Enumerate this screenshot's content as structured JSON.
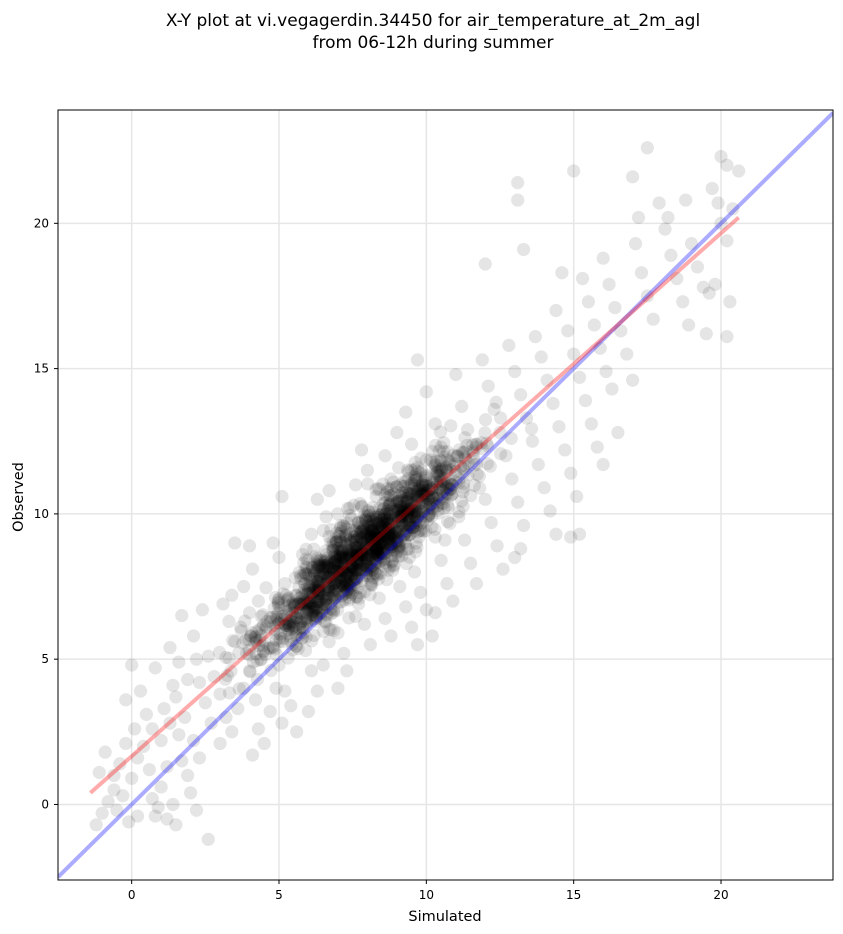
{
  "chart_data": {
    "type": "scatter",
    "title_lines": [
      "X-Y plot at vi.vegagerdin.34450 for air_temperature_at_2m_agl",
      "from 06-12h during summer"
    ],
    "xlabel": "Simulated",
    "ylabel": "Observed",
    "xlim": [
      -2.5,
      23.8
    ],
    "ylim": [
      -2.6,
      23.9
    ],
    "xticks": [
      0,
      5,
      10,
      15,
      20
    ],
    "yticks": [
      0,
      5,
      10,
      15,
      20
    ],
    "xtick_labels": [
      "0",
      "5",
      "10",
      "15",
      "20"
    ],
    "ytick_labels": [
      "0",
      "5",
      "10",
      "15",
      "20"
    ],
    "grid": true,
    "point_color": "#000000",
    "point_alpha": 0.1,
    "approx_point_count": 1800,
    "fit_line": {
      "x": [
        -1.4,
        20.6
      ],
      "y": [
        0.4,
        20.2
      ],
      "color": "#ff0000"
    },
    "identity_line": {
      "x": [
        -2.5,
        23.8
      ],
      "y": [
        -2.5,
        23.8
      ],
      "color": "#0000ff"
    },
    "points": [
      [
        -1.2,
        -0.7
      ],
      [
        -1.0,
        -0.3
      ],
      [
        -0.8,
        0.1
      ],
      [
        -0.5,
        -0.2
      ],
      [
        -0.6,
        0.5
      ],
      [
        -0.3,
        0.3
      ],
      [
        -0.1,
        -0.6
      ],
      [
        0.2,
        -0.4
      ],
      [
        -1.1,
        1.1
      ],
      [
        -0.9,
        1.8
      ],
      [
        -0.6,
        1.0
      ],
      [
        -0.4,
        1.4
      ],
      [
        -0.2,
        2.1
      ],
      [
        0.0,
        0.9
      ],
      [
        0.2,
        1.6
      ],
      [
        0.1,
        2.6
      ],
      [
        -0.2,
        3.6
      ],
      [
        0.0,
        4.8
      ],
      [
        0.3,
        3.9
      ],
      [
        0.5,
        3.1
      ],
      [
        0.7,
        2.6
      ],
      [
        0.8,
        4.7
      ],
      [
        0.4,
        2.0
      ],
      [
        0.6,
        1.2
      ],
      [
        0.7,
        0.2
      ],
      [
        0.9,
        -0.1
      ],
      [
        1.0,
        0.6
      ],
      [
        1.2,
        1.3
      ],
      [
        1.4,
        0.0
      ],
      [
        1.5,
        -0.7
      ],
      [
        1.2,
        -0.5
      ],
      [
        0.8,
        -0.4
      ],
      [
        1.0,
        2.2
      ],
      [
        1.1,
        3.3
      ],
      [
        1.3,
        2.8
      ],
      [
        1.5,
        3.7
      ],
      [
        1.6,
        2.4
      ],
      [
        1.7,
        1.5
      ],
      [
        1.9,
        1.0
      ],
      [
        2.0,
        0.4
      ],
      [
        2.2,
        -0.2
      ],
      [
        2.6,
        -1.2
      ],
      [
        2.3,
        1.6
      ],
      [
        2.1,
        2.2
      ],
      [
        1.8,
        3.0
      ],
      [
        1.4,
        4.1
      ],
      [
        1.3,
        5.4
      ],
      [
        1.6,
        4.9
      ],
      [
        1.9,
        4.3
      ],
      [
        2.1,
        5.8
      ],
      [
        1.7,
        6.5
      ],
      [
        2.4,
        6.7
      ],
      [
        2.6,
        5.1
      ],
      [
        2.8,
        4.4
      ],
      [
        3.0,
        3.8
      ],
      [
        3.2,
        3.0
      ],
      [
        3.0,
        2.1
      ],
      [
        2.7,
        2.8
      ],
      [
        2.5,
        3.5
      ],
      [
        2.3,
        4.2
      ],
      [
        2.2,
        5.0
      ],
      [
        3.4,
        2.5
      ],
      [
        3.6,
        3.3
      ],
      [
        3.8,
        4.0
      ],
      [
        3.5,
        5.6
      ],
      [
        3.3,
        6.3
      ],
      [
        3.1,
        6.9
      ],
      [
        3.4,
        7.2
      ],
      [
        3.7,
        6.1
      ],
      [
        3.9,
        5.2
      ],
      [
        4.0,
        4.6
      ],
      [
        4.2,
        3.6
      ],
      [
        4.3,
        2.6
      ],
      [
        4.1,
        1.7
      ],
      [
        4.5,
        2.1
      ],
      [
        4.7,
        3.2
      ],
      [
        4.9,
        4.0
      ],
      [
        4.4,
        5.0
      ],
      [
        4.2,
        5.7
      ],
      [
        4.0,
        6.6
      ],
      [
        3.8,
        7.5
      ],
      [
        4.1,
        8.1
      ],
      [
        4.3,
        7.0
      ],
      [
        4.6,
        6.3
      ],
      [
        4.8,
        5.4
      ],
      [
        5.0,
        4.8
      ],
      [
        5.2,
        3.9
      ],
      [
        5.4,
        3.4
      ],
      [
        5.1,
        2.8
      ],
      [
        5.6,
        2.5
      ],
      [
        5.3,
        6.0
      ],
      [
        5.5,
        6.8
      ],
      [
        5.2,
        7.6
      ],
      [
        5.0,
        8.5
      ],
      [
        4.8,
        9.0
      ],
      [
        5.1,
        10.6
      ],
      [
        3.5,
        9.0
      ],
      [
        4.0,
        8.9
      ],
      [
        5.6,
        7.2
      ],
      [
        5.8,
        6.1
      ],
      [
        5.9,
        5.3
      ],
      [
        6.1,
        4.6
      ],
      [
        6.3,
        3.9
      ],
      [
        6.0,
        3.2
      ],
      [
        6.5,
        4.8
      ],
      [
        6.7,
        5.6
      ],
      [
        6.4,
        6.4
      ],
      [
        6.2,
        7.1
      ],
      [
        6.0,
        7.9
      ],
      [
        5.8,
        8.6
      ],
      [
        6.1,
        9.3
      ],
      [
        6.4,
        8.2
      ],
      [
        6.6,
        7.4
      ],
      [
        6.8,
        6.7
      ],
      [
        7.0,
        5.9
      ],
      [
        7.2,
        5.2
      ],
      [
        7.3,
        4.6
      ],
      [
        7.0,
        4.0
      ],
      [
        6.9,
        9.0
      ],
      [
        6.6,
        9.9
      ],
      [
        6.3,
        10.5
      ],
      [
        6.7,
        10.8
      ],
      [
        7.1,
        9.6
      ],
      [
        7.3,
        8.5
      ],
      [
        7.5,
        7.7
      ],
      [
        7.7,
        6.9
      ],
      [
        7.9,
        6.2
      ],
      [
        8.1,
        5.5
      ],
      [
        7.4,
        10.2
      ],
      [
        7.6,
        11.0
      ],
      [
        7.8,
        9.4
      ],
      [
        8.0,
        8.6
      ],
      [
        8.2,
        7.8
      ],
      [
        8.4,
        7.1
      ],
      [
        8.6,
        6.4
      ],
      [
        8.8,
        5.8
      ],
      [
        8.0,
        11.5
      ],
      [
        7.8,
        12.2
      ],
      [
        8.3,
        10.6
      ],
      [
        8.5,
        9.8
      ],
      [
        8.7,
        9.0
      ],
      [
        8.9,
        8.2
      ],
      [
        9.1,
        7.5
      ],
      [
        9.3,
        6.8
      ],
      [
        9.5,
        6.1
      ],
      [
        9.7,
        5.5
      ],
      [
        8.6,
        12.0
      ],
      [
        8.8,
        11.2
      ],
      [
        9.0,
        10.4
      ],
      [
        9.2,
        9.6
      ],
      [
        9.4,
        8.8
      ],
      [
        9.6,
        8.0
      ],
      [
        9.8,
        7.3
      ],
      [
        10.0,
        6.7
      ],
      [
        10.2,
        5.8
      ],
      [
        10.3,
        6.6
      ],
      [
        9.0,
        12.8
      ],
      [
        9.3,
        13.5
      ],
      [
        9.5,
        12.4
      ],
      [
        9.7,
        11.6
      ],
      [
        9.9,
        10.8
      ],
      [
        10.1,
        10.0
      ],
      [
        10.3,
        9.2
      ],
      [
        10.5,
        8.4
      ],
      [
        10.7,
        7.6
      ],
      [
        10.9,
        7.0
      ],
      [
        10.0,
        14.2
      ],
      [
        9.7,
        15.3
      ],
      [
        10.3,
        13.1
      ],
      [
        10.5,
        12.3
      ],
      [
        10.7,
        11.5
      ],
      [
        10.9,
        10.7
      ],
      [
        11.1,
        9.9
      ],
      [
        11.3,
        9.1
      ],
      [
        11.5,
        8.3
      ],
      [
        11.7,
        7.6
      ],
      [
        11.0,
        14.8
      ],
      [
        11.2,
        13.7
      ],
      [
        11.4,
        12.9
      ],
      [
        11.6,
        12.1
      ],
      [
        11.8,
        11.3
      ],
      [
        12.0,
        10.5
      ],
      [
        12.2,
        9.7
      ],
      [
        12.4,
        8.9
      ],
      [
        12.6,
        8.1
      ],
      [
        11.9,
        15.3
      ],
      [
        12.1,
        14.4
      ],
      [
        12.3,
        13.6
      ],
      [
        12.5,
        12.8
      ],
      [
        12.7,
        12.0
      ],
      [
        12.9,
        11.2
      ],
      [
        13.1,
        10.4
      ],
      [
        13.3,
        9.6
      ],
      [
        13.0,
        8.5
      ],
      [
        13.2,
        8.8
      ],
      [
        12.0,
        18.6
      ],
      [
        12.8,
        15.8
      ],
      [
        13.0,
        14.9
      ],
      [
        13.2,
        14.1
      ],
      [
        13.4,
        13.3
      ],
      [
        13.6,
        12.5
      ],
      [
        13.8,
        11.7
      ],
      [
        14.0,
        10.9
      ],
      [
        14.2,
        10.1
      ],
      [
        14.4,
        9.3
      ],
      [
        13.1,
        21.4
      ],
      [
        13.1,
        20.8
      ],
      [
        13.3,
        19.1
      ],
      [
        13.7,
        16.1
      ],
      [
        13.9,
        15.4
      ],
      [
        14.1,
        14.6
      ],
      [
        14.3,
        13.8
      ],
      [
        14.5,
        13.0
      ],
      [
        14.7,
        12.2
      ],
      [
        14.9,
        11.4
      ],
      [
        15.1,
        10.6
      ],
      [
        15.2,
        9.3
      ],
      [
        14.9,
        9.2
      ],
      [
        14.4,
        17.0
      ],
      [
        14.6,
        18.3
      ],
      [
        14.8,
        16.3
      ],
      [
        15.0,
        15.5
      ],
      [
        15.2,
        14.7
      ],
      [
        15.4,
        13.9
      ],
      [
        15.6,
        13.1
      ],
      [
        15.8,
        12.3
      ],
      [
        16.0,
        11.7
      ],
      [
        15.0,
        21.8
      ],
      [
        15.3,
        18.1
      ],
      [
        15.5,
        17.3
      ],
      [
        15.7,
        16.5
      ],
      [
        15.9,
        15.7
      ],
      [
        16.1,
        14.9
      ],
      [
        16.3,
        14.3
      ],
      [
        16.5,
        12.8
      ],
      [
        16.0,
        18.8
      ],
      [
        16.2,
        17.9
      ],
      [
        16.4,
        17.1
      ],
      [
        16.6,
        16.3
      ],
      [
        16.8,
        15.5
      ],
      [
        17.0,
        14.6
      ],
      [
        17.0,
        21.6
      ],
      [
        17.2,
        20.2
      ],
      [
        17.1,
        19.3
      ],
      [
        17.3,
        18.3
      ],
      [
        17.5,
        17.5
      ],
      [
        17.7,
        16.7
      ],
      [
        17.5,
        22.6
      ],
      [
        17.9,
        20.7
      ],
      [
        18.1,
        19.8
      ],
      [
        18.3,
        18.9
      ],
      [
        18.5,
        18.1
      ],
      [
        18.7,
        17.3
      ],
      [
        18.9,
        16.5
      ],
      [
        18.2,
        20.2
      ],
      [
        18.8,
        20.8
      ],
      [
        19.0,
        19.3
      ],
      [
        19.2,
        18.5
      ],
      [
        19.4,
        17.8
      ],
      [
        19.6,
        17.6
      ],
      [
        19.8,
        17.9
      ],
      [
        20.0,
        22.3
      ],
      [
        20.2,
        22.0
      ],
      [
        20.6,
        21.8
      ],
      [
        20.4,
        20.5
      ],
      [
        20.0,
        20.0
      ],
      [
        20.2,
        19.4
      ],
      [
        19.5,
        16.2
      ],
      [
        20.2,
        16.1
      ],
      [
        20.3,
        17.3
      ],
      [
        19.7,
        21.2
      ],
      [
        19.9,
        20.7
      ]
    ]
  }
}
